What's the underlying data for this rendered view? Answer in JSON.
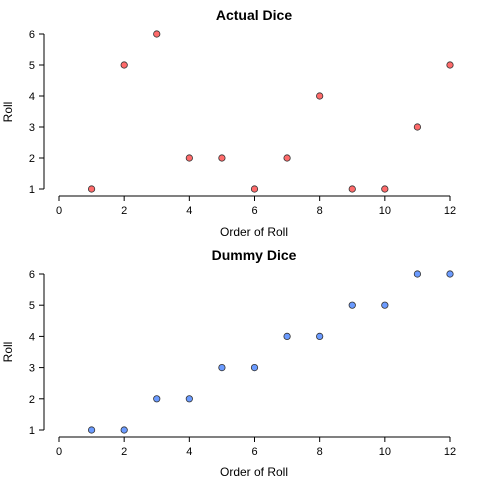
{
  "chart_data": [
    {
      "type": "scatter",
      "title": "Actual Dice",
      "xlabel": "Order of Roll",
      "ylabel": "Roll",
      "xlim": [
        0,
        12
      ],
      "ylim": [
        1,
        6
      ],
      "xticks": [
        0,
        2,
        4,
        6,
        8,
        10,
        12
      ],
      "yticks": [
        1,
        2,
        3,
        4,
        5,
        6
      ],
      "grid": false,
      "series": [
        {
          "color": "#ff6b6b",
          "x": [
            1,
            2,
            3,
            4,
            5,
            6,
            7,
            8,
            9,
            10,
            11,
            12
          ],
          "y": [
            1,
            5,
            6,
            2,
            2,
            1,
            2,
            4,
            1,
            1,
            3,
            5
          ]
        }
      ]
    },
    {
      "type": "scatter",
      "title": "Dummy Dice",
      "xlabel": "Order of Roll",
      "ylabel": "Roll",
      "xlim": [
        0,
        12
      ],
      "ylim": [
        1,
        6
      ],
      "xticks": [
        0,
        2,
        4,
        6,
        8,
        10,
        12
      ],
      "yticks": [
        1,
        2,
        3,
        4,
        5,
        6
      ],
      "grid": false,
      "series": [
        {
          "color": "#6b9bff",
          "x": [
            1,
            2,
            3,
            4,
            5,
            6,
            7,
            8,
            9,
            10,
            11,
            12
          ],
          "y": [
            1,
            1,
            2,
            2,
            3,
            3,
            4,
            4,
            5,
            5,
            6,
            6
          ]
        }
      ]
    }
  ]
}
